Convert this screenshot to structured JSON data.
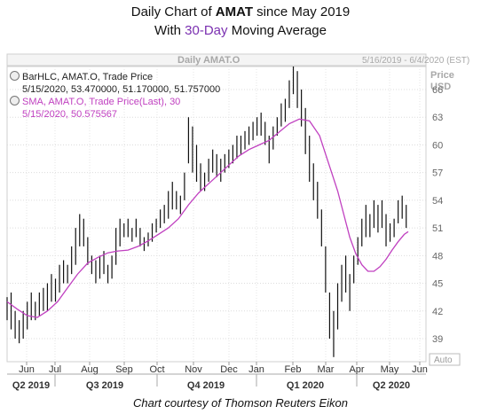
{
  "header": {
    "title_prefix": "Daily Chart of ",
    "title_ticker": "AMAT",
    "title_suffix": " since May 2019",
    "subtitle_prefix": "With ",
    "subtitle_accent": "30-Day",
    "subtitle_suffix": " Moving Average"
  },
  "panel": {
    "name": "Daily AMAT.O",
    "date_range": "5/16/2019 - 6/4/2020 (EST)",
    "axis_title_1": "Price",
    "axis_title_2": "USD",
    "auto_label": "Auto"
  },
  "legend": {
    "bar_line1": "BarHLC, AMAT.O, Trade Price",
    "bar_line2": "5/15/2020, 53.470000, 51.170000, 51.757000",
    "sma_line1": "SMA, AMAT.O, Trade Price(Last), 30",
    "sma_line2": "5/15/2020, 50.575567"
  },
  "caption": "Chart courtesy of Thomson Reuters Eikon",
  "colors": {
    "bars": "#111111",
    "sma": "#c040c0",
    "grid": "#d8d8d8",
    "accent": "#7a2fb0"
  },
  "chart_data": {
    "type": "line",
    "y_ticks": [
      39,
      42,
      45,
      48,
      51,
      54,
      57,
      60,
      63,
      66
    ],
    "ylim": [
      36.5,
      68.5
    ],
    "x_months": [
      "Jun",
      "Jul",
      "Aug",
      "Sep",
      "Oct",
      "Nov",
      "Dec",
      "Jan",
      "Feb",
      "Mar",
      "Apr",
      "May",
      "Jun"
    ],
    "x_quarters": [
      "Q2 2019",
      "Q3 2019",
      "Q4 2019",
      "Q1 2020",
      "Q2 2020"
    ],
    "series": [
      {
        "name": "Trade Price",
        "kind": "bar-hlc",
        "points": [
          [
            0,
            43.5,
            41
          ],
          [
            2,
            44,
            40
          ],
          [
            4,
            42,
            39
          ],
          [
            6,
            41,
            38.5
          ],
          [
            8,
            42,
            39
          ],
          [
            10,
            43,
            40
          ],
          [
            12,
            44,
            41
          ],
          [
            14,
            43,
            41
          ],
          [
            16,
            44,
            41.5
          ],
          [
            18,
            44.5,
            42
          ],
          [
            20,
            45,
            42
          ],
          [
            22,
            46,
            43
          ],
          [
            24,
            45.5,
            43
          ],
          [
            26,
            47,
            44
          ],
          [
            28,
            47.5,
            45
          ],
          [
            30,
            47,
            45
          ],
          [
            32,
            49,
            46
          ],
          [
            34,
            51,
            47
          ],
          [
            36,
            52.5,
            49
          ],
          [
            38,
            52,
            49
          ],
          [
            40,
            50,
            47
          ],
          [
            42,
            48,
            46
          ],
          [
            44,
            47.5,
            45
          ],
          [
            46,
            48,
            45.5
          ],
          [
            48,
            48.5,
            46
          ],
          [
            50,
            47,
            45
          ],
          [
            52,
            48,
            45.5
          ],
          [
            54,
            51,
            47
          ],
          [
            56,
            52,
            49
          ],
          [
            58,
            51.5,
            50
          ],
          [
            60,
            52,
            50
          ],
          [
            62,
            51,
            49.5
          ],
          [
            64,
            52,
            50
          ],
          [
            66,
            51,
            49
          ],
          [
            68,
            50,
            48.5
          ],
          [
            70,
            50.5,
            49
          ],
          [
            72,
            51.5,
            49.5
          ],
          [
            74,
            52,
            50.5
          ],
          [
            76,
            53,
            51
          ],
          [
            78,
            53.5,
            51.5
          ],
          [
            80,
            55,
            52
          ],
          [
            82,
            56,
            53
          ],
          [
            84,
            55,
            53
          ],
          [
            86,
            54.5,
            52.5
          ],
          [
            88,
            57,
            54
          ],
          [
            90,
            63,
            58
          ],
          [
            92,
            62,
            57
          ],
          [
            94,
            60,
            56
          ],
          [
            96,
            58,
            55
          ],
          [
            98,
            57,
            55
          ],
          [
            100,
            58.5,
            56
          ],
          [
            102,
            59.5,
            57
          ],
          [
            104,
            59,
            56.5
          ],
          [
            106,
            58.5,
            56
          ],
          [
            108,
            59,
            57
          ],
          [
            110,
            59.5,
            57.5
          ],
          [
            112,
            60,
            58
          ],
          [
            114,
            61,
            58.5
          ],
          [
            116,
            61,
            59
          ],
          [
            118,
            61.5,
            59.5
          ],
          [
            120,
            62,
            60
          ],
          [
            122,
            62.5,
            60.5
          ],
          [
            124,
            63,
            61
          ],
          [
            126,
            63.5,
            61
          ],
          [
            128,
            62.5,
            60
          ],
          [
            130,
            61,
            58
          ],
          [
            132,
            62,
            59.5
          ],
          [
            134,
            63,
            61
          ],
          [
            136,
            64.5,
            62
          ],
          [
            138,
            65,
            62.5
          ],
          [
            140,
            67,
            64
          ],
          [
            142,
            68.5,
            65.5
          ],
          [
            144,
            68,
            64
          ],
          [
            146,
            66,
            62
          ],
          [
            148,
            64,
            59
          ],
          [
            150,
            61,
            56
          ],
          [
            152,
            58,
            54
          ],
          [
            154,
            56,
            52
          ],
          [
            156,
            53,
            49
          ],
          [
            158,
            49,
            44
          ],
          [
            160,
            44,
            39
          ],
          [
            162,
            42,
            37
          ],
          [
            164,
            45,
            40
          ],
          [
            166,
            47,
            43
          ],
          [
            168,
            48,
            44
          ],
          [
            170,
            46,
            42
          ],
          [
            172,
            48,
            45
          ],
          [
            174,
            50,
            47
          ],
          [
            176,
            52,
            49
          ],
          [
            178,
            53.5,
            50
          ],
          [
            180,
            52.5,
            50
          ],
          [
            182,
            54,
            51
          ],
          [
            184,
            53.5,
            50.5
          ],
          [
            186,
            54,
            51
          ],
          [
            188,
            52.5,
            49
          ],
          [
            190,
            51.5,
            49.5
          ],
          [
            192,
            52,
            50
          ],
          [
            194,
            54,
            51.5
          ],
          [
            196,
            54.5,
            52
          ],
          [
            198,
            53.5,
            51
          ]
        ]
      },
      {
        "name": "SMA, AMAT.O, Trade Price(Last), 30",
        "kind": "line",
        "points": [
          [
            0,
            43
          ],
          [
            5,
            42.2
          ],
          [
            10,
            41.5
          ],
          [
            15,
            41.3
          ],
          [
            20,
            42
          ],
          [
            25,
            43
          ],
          [
            30,
            44.5
          ],
          [
            35,
            46
          ],
          [
            40,
            47.2
          ],
          [
            45,
            47.8
          ],
          [
            50,
            48.3
          ],
          [
            55,
            48.5
          ],
          [
            60,
            48.6
          ],
          [
            65,
            49
          ],
          [
            70,
            49.6
          ],
          [
            75,
            50.3
          ],
          [
            80,
            51
          ],
          [
            85,
            52
          ],
          [
            90,
            53.5
          ],
          [
            95,
            54.8
          ],
          [
            100,
            55.8
          ],
          [
            105,
            56.8
          ],
          [
            110,
            57.8
          ],
          [
            115,
            58.8
          ],
          [
            120,
            59.5
          ],
          [
            125,
            60
          ],
          [
            130,
            60.5
          ],
          [
            135,
            61.4
          ],
          [
            140,
            62.3
          ],
          [
            145,
            62.8
          ],
          [
            150,
            62.6
          ],
          [
            155,
            61
          ],
          [
            158,
            59
          ],
          [
            161,
            57
          ],
          [
            164,
            55
          ],
          [
            167,
            52.5
          ],
          [
            170,
            50
          ],
          [
            173,
            48.2
          ],
          [
            176,
            47
          ],
          [
            179,
            46.3
          ],
          [
            182,
            46.3
          ],
          [
            185,
            46.8
          ],
          [
            188,
            47.6
          ],
          [
            191,
            48.6
          ],
          [
            194,
            49.5
          ],
          [
            197,
            50.3
          ],
          [
            199,
            50.6
          ]
        ]
      }
    ]
  }
}
